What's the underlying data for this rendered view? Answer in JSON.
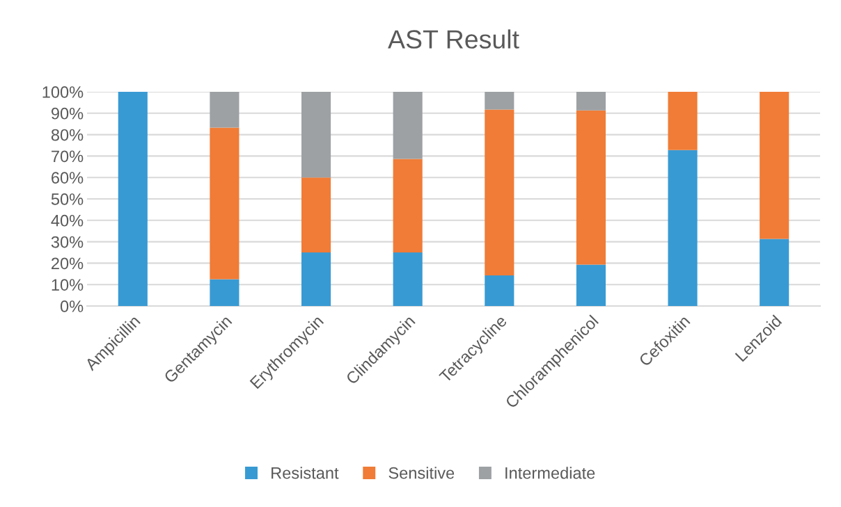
{
  "chart_data": {
    "type": "bar",
    "title": "AST Result",
    "stacked": true,
    "categories": [
      "Ampicillin",
      "Gentamycin",
      "Erythromycin",
      "Clindamycin",
      "Tetracycline",
      "Chloramphenicol",
      "Cefoxitin",
      "Lenzoid"
    ],
    "series": [
      {
        "name": "Resistant",
        "color": "#389ad3",
        "values": [
          100,
          12.5,
          25,
          25,
          14.3,
          19.3,
          72.8,
          31.3
        ]
      },
      {
        "name": "Sensitive",
        "color": "#f07c37",
        "values": [
          0,
          70.8,
          35,
          43.7,
          77.4,
          72.0,
          27.2,
          68.7
        ]
      },
      {
        "name": "Intermediate",
        "color": "#9da1a4",
        "values": [
          0,
          16.7,
          40,
          31.3,
          8.3,
          8.7,
          0,
          0
        ]
      }
    ],
    "ylim": [
      0,
      100
    ],
    "yticks": [
      {
        "value": 0,
        "label": "0%"
      },
      {
        "value": 10,
        "label": "10%"
      },
      {
        "value": 20,
        "label": "20%"
      },
      {
        "value": 30,
        "label": "30%"
      },
      {
        "value": 40,
        "label": "40%"
      },
      {
        "value": 50,
        "label": "50%"
      },
      {
        "value": 60,
        "label": "60%"
      },
      {
        "value": 70,
        "label": "70%"
      },
      {
        "value": 80,
        "label": "80%"
      },
      {
        "value": 90,
        "label": "90%"
      },
      {
        "value": 100,
        "label": "100%"
      }
    ],
    "grid": "y",
    "legend": "bottom"
  }
}
